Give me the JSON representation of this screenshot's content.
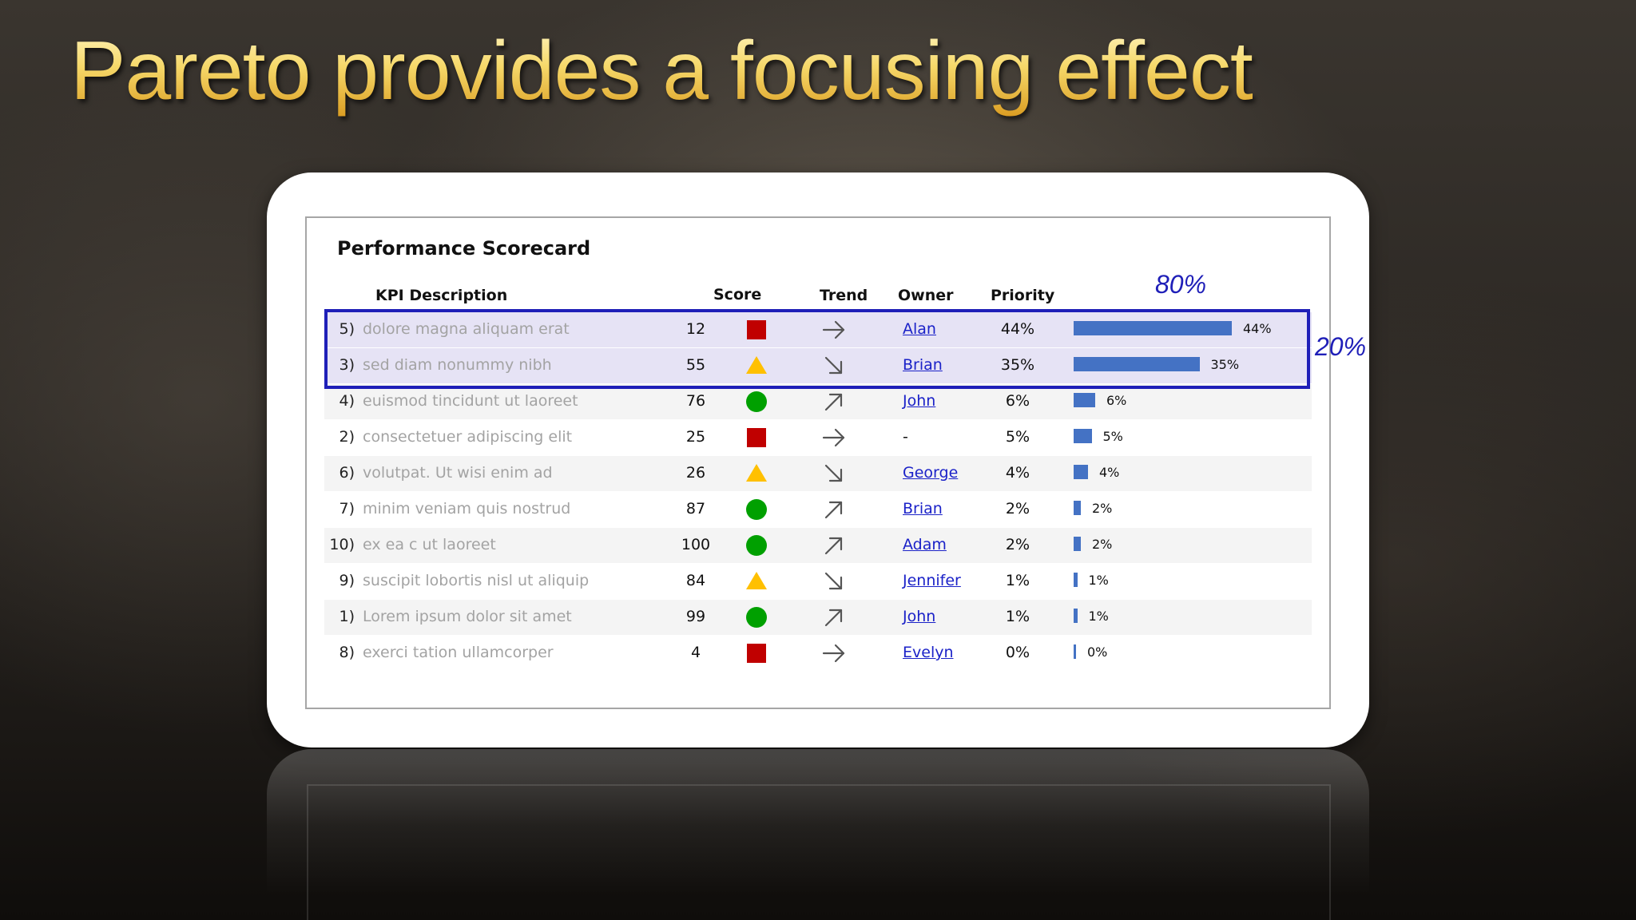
{
  "slide": {
    "title": "Pareto provides a focusing effect"
  },
  "scorecard": {
    "title": "Performance Scorecard",
    "columns": {
      "kpi": "KPI Description",
      "score": "Score",
      "trend": "Trend",
      "owner": "Owner",
      "priority": "Priority"
    },
    "rows": [
      {
        "rank": "5)",
        "desc": "dolore magna aliquam erat",
        "score": "12",
        "status": "red-square",
        "trend": "right",
        "owner": "Alan",
        "priority": "44%",
        "bar": 0.44,
        "bar_label": "44%"
      },
      {
        "rank": "3)",
        "desc": "sed diam nonummy nibh",
        "score": "55",
        "status": "yellow-triangle",
        "trend": "down-right",
        "owner": "Brian",
        "priority": "35%",
        "bar": 0.35,
        "bar_label": "35%"
      },
      {
        "rank": "4)",
        "desc": "euismod tincidunt ut laoreet",
        "score": "76",
        "status": "green-circle",
        "trend": "up-right",
        "owner": "John",
        "priority": "6%",
        "bar": 0.06,
        "bar_label": "6%"
      },
      {
        "rank": "2)",
        "desc": "consectetuer adipiscing elit",
        "score": "25",
        "status": "red-square",
        "trend": "right",
        "owner": "-",
        "priority": "5%",
        "bar": 0.05,
        "bar_label": "5%"
      },
      {
        "rank": "6)",
        "desc": "volutpat. Ut wisi enim ad",
        "score": "26",
        "status": "yellow-triangle",
        "trend": "down-right",
        "owner": "George",
        "priority": "4%",
        "bar": 0.04,
        "bar_label": "4%"
      },
      {
        "rank": "7)",
        "desc": "minim veniam quis nostrud",
        "score": "87",
        "status": "green-circle",
        "trend": "up-right",
        "owner": "Brian",
        "priority": "2%",
        "bar": 0.02,
        "bar_label": "2%"
      },
      {
        "rank": "10)",
        "desc": "ex ea c ut laoreet",
        "score": "100",
        "status": "green-circle",
        "trend": "up-right",
        "owner": "Adam",
        "priority": "2%",
        "bar": 0.02,
        "bar_label": "2%"
      },
      {
        "rank": "9)",
        "desc": "suscipit lobortis nisl ut aliquip",
        "score": "84",
        "status": "yellow-triangle",
        "trend": "down-right",
        "owner": "Jennifer",
        "priority": "1%",
        "bar": 0.01,
        "bar_label": "1%"
      },
      {
        "rank": "1)",
        "desc": "Lorem ipsum dolor sit amet",
        "score": "99",
        "status": "green-circle",
        "trend": "up-right",
        "owner": "John",
        "priority": "1%",
        "bar": 0.01,
        "bar_label": "1%"
      },
      {
        "rank": "8)",
        "desc": "exerci tation ullamcorper",
        "score": "4",
        "status": "red-square",
        "trend": "right",
        "owner": "Evelyn",
        "priority": "0%",
        "bar": 0.0,
        "bar_label": "0%"
      }
    ]
  },
  "annotations": {
    "top_share": "80%",
    "side_share": "20%"
  },
  "colors": {
    "title_gold": "#f3cf5c",
    "bar_blue": "#4472c4",
    "status_red": "#c00000",
    "status_yellow": "#ffc000",
    "status_green": "#00a000",
    "highlight_blue": "#1f1fb8",
    "link_blue": "#1b22c8"
  }
}
